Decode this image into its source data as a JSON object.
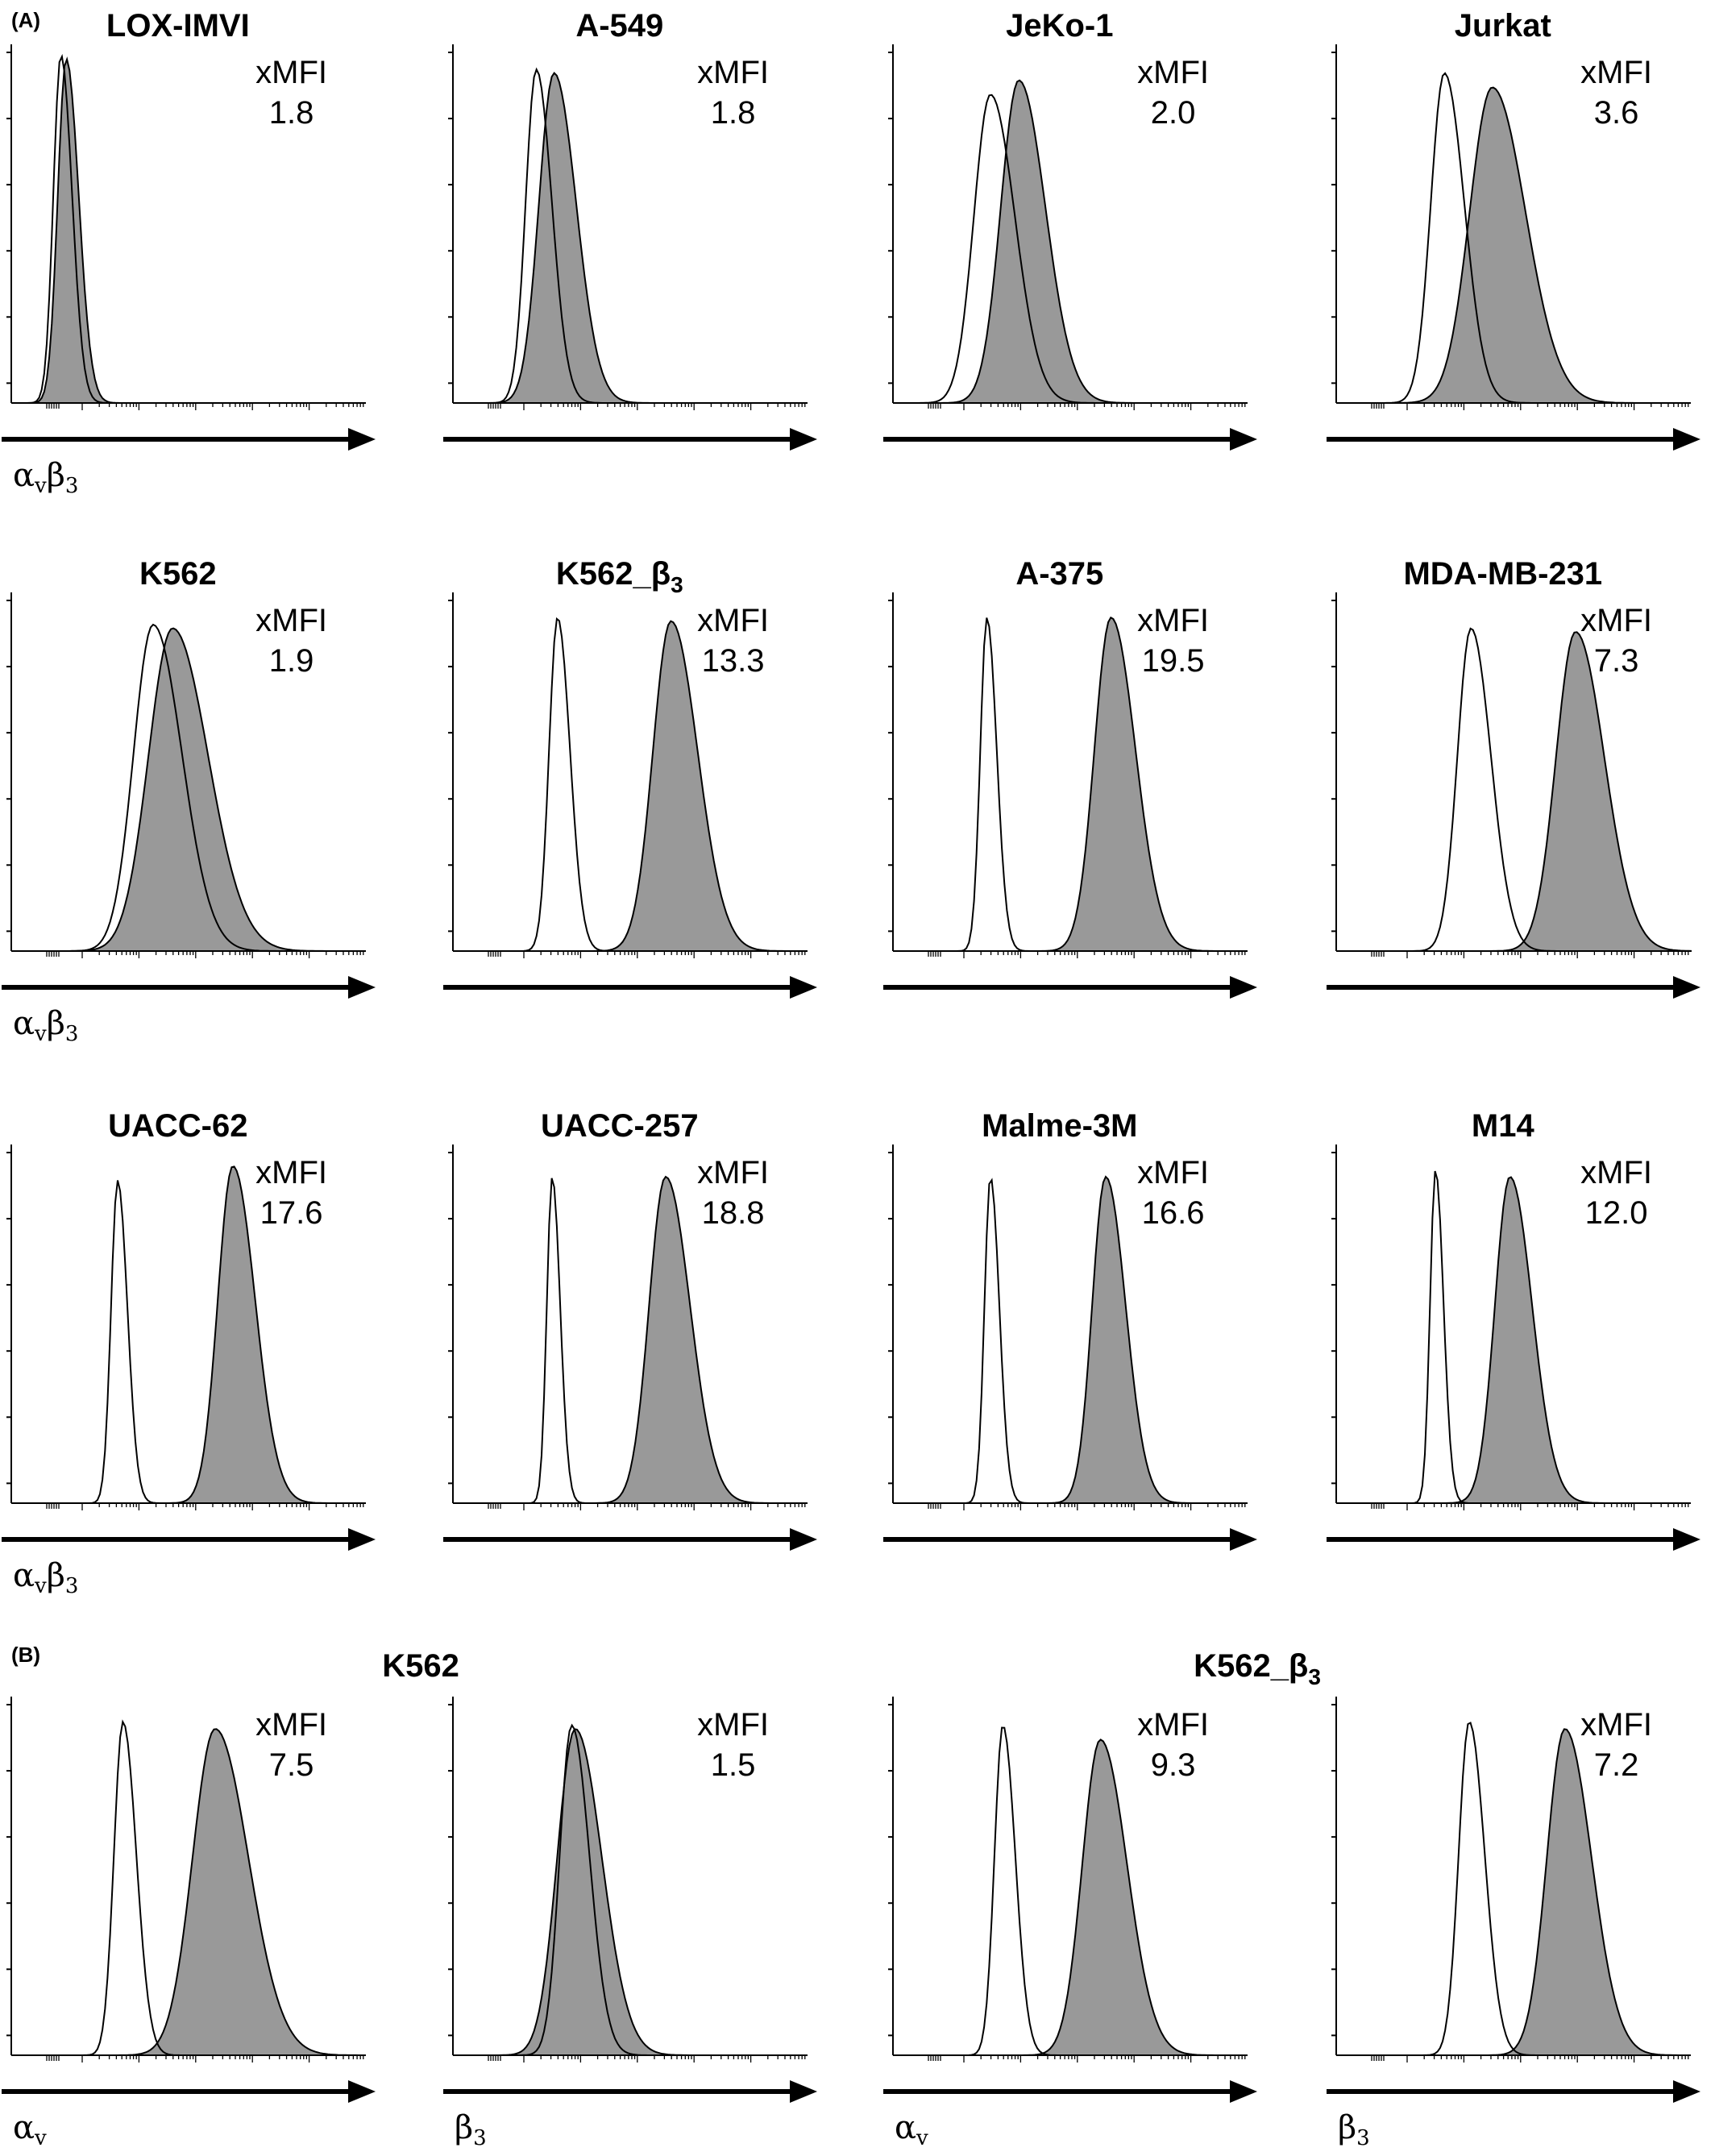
{
  "panels": [
    {
      "letter": "(A)"
    },
    {
      "letter": "(B)"
    }
  ],
  "panel_b_groups": [
    {
      "title": "K562"
    },
    {
      "title_base": "K562_β",
      "title_sub": "3"
    }
  ],
  "xmfi_label": "xMFI",
  "chart_data": [
    {
      "type": "area",
      "panel": "A",
      "row": 1,
      "title": "LOX-IMVI",
      "xlabel": "αvβ3",
      "xmfi": "1.8",
      "series": [
        {
          "role": "control",
          "fill": "none",
          "stroke": "#000000",
          "peak": 0.14,
          "width": 0.025,
          "height": 0.97
        },
        {
          "role": "stained",
          "fill": "#999999",
          "stroke": "#000000",
          "peak": 0.155,
          "width": 0.028,
          "height": 0.96
        }
      ]
    },
    {
      "type": "area",
      "panel": "A",
      "row": 1,
      "title": "A-549",
      "xlabel": "",
      "xmfi": "1.8",
      "series": [
        {
          "role": "control",
          "fill": "none",
          "stroke": "#000000",
          "peak": 0.235,
          "width": 0.035,
          "height": 0.93
        },
        {
          "role": "stained",
          "fill": "#999999",
          "stroke": "#000000",
          "peak": 0.285,
          "width": 0.05,
          "height": 0.92
        }
      ]
    },
    {
      "type": "area",
      "panel": "A",
      "row": 1,
      "title": "JeKo-1",
      "xlabel": "",
      "xmfi": "2.0",
      "series": [
        {
          "role": "control",
          "fill": "none",
          "stroke": "#000000",
          "peak": 0.275,
          "width": 0.055,
          "height": 0.86
        },
        {
          "role": "stained",
          "fill": "#999999",
          "stroke": "#000000",
          "peak": 0.355,
          "width": 0.06,
          "height": 0.9
        }
      ]
    },
    {
      "type": "area",
      "panel": "A",
      "row": 1,
      "title": "Jurkat",
      "xlabel": "",
      "xmfi": "3.6",
      "series": [
        {
          "role": "control",
          "fill": "none",
          "stroke": "#000000",
          "peak": 0.305,
          "width": 0.045,
          "height": 0.92
        },
        {
          "role": "stained",
          "fill": "#999999",
          "stroke": "#000000",
          "peak": 0.44,
          "width": 0.075,
          "height": 0.88
        }
      ]
    },
    {
      "type": "area",
      "panel": "A",
      "row": 2,
      "title": "K562",
      "xlabel": "αvβ3",
      "xmfi": "1.9",
      "series": [
        {
          "role": "control",
          "fill": "none",
          "stroke": "#000000",
          "peak": 0.4,
          "width": 0.065,
          "height": 0.91
        },
        {
          "role": "stained",
          "fill": "#999999",
          "stroke": "#000000",
          "peak": 0.455,
          "width": 0.08,
          "height": 0.9
        }
      ]
    },
    {
      "type": "area",
      "panel": "A",
      "row": 2,
      "title_base": "K562_β",
      "title_sub": "3",
      "xlabel": "",
      "xmfi": "13.3",
      "series": [
        {
          "role": "control",
          "fill": "none",
          "stroke": "#000000",
          "peak": 0.295,
          "width": 0.028,
          "height": 0.93
        },
        {
          "role": "stained",
          "fill": "#999999",
          "stroke": "#000000",
          "peak": 0.615,
          "width": 0.06,
          "height": 0.92
        }
      ]
    },
    {
      "type": "area",
      "panel": "A",
      "row": 2,
      "title": "A-375",
      "xlabel": "",
      "xmfi": "19.5",
      "series": [
        {
          "role": "control",
          "fill": "none",
          "stroke": "#000000",
          "peak": 0.265,
          "width": 0.022,
          "height": 0.93
        },
        {
          "role": "stained",
          "fill": "#999999",
          "stroke": "#000000",
          "peak": 0.615,
          "width": 0.055,
          "height": 0.93
        }
      ]
    },
    {
      "type": "area",
      "panel": "A",
      "row": 2,
      "title": "MDA-MB-231",
      "xlabel": "",
      "xmfi": "7.3",
      "series": [
        {
          "role": "control",
          "fill": "none",
          "stroke": "#000000",
          "peak": 0.38,
          "width": 0.045,
          "height": 0.9
        },
        {
          "role": "stained",
          "fill": "#999999",
          "stroke": "#000000",
          "peak": 0.675,
          "width": 0.065,
          "height": 0.89
        }
      ]
    },
    {
      "type": "area",
      "panel": "A",
      "row": 3,
      "title": "UACC-62",
      "xlabel": "αvβ3",
      "xmfi": "17.6",
      "series": [
        {
          "role": "control",
          "fill": "none",
          "stroke": "#000000",
          "peak": 0.3,
          "width": 0.022,
          "height": 0.9
        },
        {
          "role": "stained",
          "fill": "#999999",
          "stroke": "#000000",
          "peak": 0.625,
          "width": 0.05,
          "height": 0.94
        }
      ]
    },
    {
      "type": "area",
      "panel": "A",
      "row": 3,
      "title": "UACC-257",
      "xlabel": "",
      "xmfi": "18.8",
      "series": [
        {
          "role": "control",
          "fill": "none",
          "stroke": "#000000",
          "peak": 0.28,
          "width": 0.018,
          "height": 0.91
        },
        {
          "role": "stained",
          "fill": "#999999",
          "stroke": "#000000",
          "peak": 0.6,
          "width": 0.055,
          "height": 0.91
        }
      ]
    },
    {
      "type": "area",
      "panel": "A",
      "row": 3,
      "title": "Malme-3M",
      "xlabel": "",
      "xmfi": "16.6",
      "series": [
        {
          "role": "control",
          "fill": "none",
          "stroke": "#000000",
          "peak": 0.275,
          "width": 0.02,
          "height": 0.91
        },
        {
          "role": "stained",
          "fill": "#999999",
          "stroke": "#000000",
          "peak": 0.6,
          "width": 0.045,
          "height": 0.91
        }
      ]
    },
    {
      "type": "area",
      "panel": "A",
      "row": 3,
      "title": "M14",
      "xlabel": "",
      "xmfi": "12.0",
      "series": [
        {
          "role": "control",
          "fill": "none",
          "stroke": "#000000",
          "peak": 0.28,
          "width": 0.018,
          "height": 0.93
        },
        {
          "role": "stained",
          "fill": "#999999",
          "stroke": "#000000",
          "peak": 0.49,
          "width": 0.05,
          "height": 0.91
        }
      ]
    },
    {
      "type": "area",
      "panel": "B",
      "row": 4,
      "title": "",
      "xlabel": "αv",
      "xmfi": "7.5",
      "series": [
        {
          "role": "control",
          "fill": "none",
          "stroke": "#000000",
          "peak": 0.315,
          "width": 0.03,
          "height": 0.93
        },
        {
          "role": "stained",
          "fill": "#999999",
          "stroke": "#000000",
          "peak": 0.575,
          "width": 0.075,
          "height": 0.91
        }
      ]
    },
    {
      "type": "area",
      "panel": "B",
      "row": 4,
      "title": "",
      "xlabel": "β3",
      "xmfi": "1.5",
      "series": [
        {
          "role": "control",
          "fill": "none",
          "stroke": "#000000",
          "peak": 0.335,
          "width": 0.04,
          "height": 0.92
        },
        {
          "role": "stained",
          "fill": "#999999",
          "stroke": "#000000",
          "peak": 0.345,
          "width": 0.06,
          "height": 0.91
        }
      ]
    },
    {
      "type": "area",
      "panel": "B",
      "row": 4,
      "title": "",
      "xlabel": "αv",
      "xmfi": "9.3",
      "series": [
        {
          "role": "control",
          "fill": "none",
          "stroke": "#000000",
          "peak": 0.31,
          "width": 0.028,
          "height": 0.92
        },
        {
          "role": "stained",
          "fill": "#999999",
          "stroke": "#000000",
          "peak": 0.585,
          "width": 0.06,
          "height": 0.88
        }
      ]
    },
    {
      "type": "area",
      "panel": "B",
      "row": 4,
      "title": "",
      "xlabel": "β3",
      "xmfi": "7.2",
      "series": [
        {
          "role": "control",
          "fill": "none",
          "stroke": "#000000",
          "peak": 0.375,
          "width": 0.035,
          "height": 0.93
        },
        {
          "role": "stained",
          "fill": "#999999",
          "stroke": "#000000",
          "peak": 0.645,
          "width": 0.06,
          "height": 0.91
        }
      ]
    }
  ]
}
